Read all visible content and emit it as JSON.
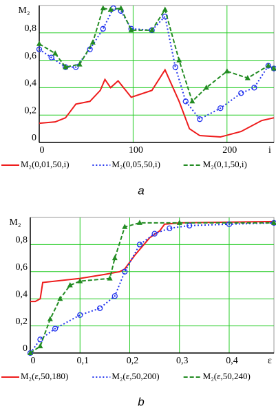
{
  "chart_data": [
    {
      "type": "line",
      "caption": "a",
      "xlabel": "i",
      "ylabel": "M₂",
      "xlim": [
        0,
        250
      ],
      "ylim": [
        0,
        1
      ],
      "xticks": [
        0,
        100,
        200
      ],
      "yticks": [
        0,
        {
          "value": 0.2,
          "label": "0,2"
        },
        {
          "value": 0.4,
          "label": "0,4"
        },
        {
          "value": 0.6,
          "label": "0,6"
        },
        {
          "value": 0.8,
          "label": "0,8"
        }
      ],
      "grid": true,
      "grid_color": "#22cc22",
      "series": [
        {
          "name": "M₂(0,01,50,i)",
          "color": "#ee1c1c",
          "style": "solid",
          "marker": "none",
          "x": [
            0,
            17,
            28,
            39,
            54,
            65,
            70,
            76,
            84,
            98,
            120,
            134,
            149,
            160,
            171,
            193,
            215,
            237,
            250
          ],
          "values": [
            0.14,
            0.15,
            0.18,
            0.28,
            0.3,
            0.38,
            0.46,
            0.4,
            0.45,
            0.33,
            0.38,
            0.53,
            0.3,
            0.1,
            0.05,
            0.04,
            0.08,
            0.16,
            0.18
          ]
        },
        {
          "name": "M₂(0,05,50,i)",
          "color": "#2233ee",
          "style": "dotted",
          "marker": "circle",
          "x": [
            0,
            13,
            28,
            39,
            54,
            68,
            79,
            87,
            98,
            120,
            134,
            145,
            156,
            171,
            193,
            215,
            229,
            244,
            250
          ],
          "values": [
            0.68,
            0.62,
            0.55,
            0.55,
            0.68,
            0.83,
            0.98,
            0.96,
            0.83,
            0.82,
            0.92,
            0.55,
            0.3,
            0.17,
            0.25,
            0.36,
            0.4,
            0.56,
            0.54
          ]
        },
        {
          "name": "M₂(0,1,50,i)",
          "color": "#228b22",
          "style": "dashed",
          "marker": "triangle",
          "x": [
            0,
            17,
            28,
            43,
            57,
            68,
            76,
            87,
            98,
            120,
            134,
            149,
            163,
            178,
            200,
            222,
            244,
            250
          ],
          "values": [
            0.72,
            0.65,
            0.55,
            0.57,
            0.73,
            0.98,
            0.97,
            0.98,
            0.82,
            0.82,
            0.97,
            0.6,
            0.3,
            0.4,
            0.52,
            0.47,
            0.56,
            0.54
          ]
        }
      ]
    },
    {
      "type": "line",
      "caption": "b",
      "xlabel": "ε",
      "ylabel": "M₂",
      "xlim": [
        0,
        0.49
      ],
      "ylim": [
        0,
        1
      ],
      "xticks": [
        0,
        {
          "value": 0.1,
          "label": "0,1"
        },
        {
          "value": 0.2,
          "label": "0,2"
        },
        {
          "value": 0.3,
          "label": "0,3"
        },
        {
          "value": 0.4,
          "label": "0,4"
        }
      ],
      "yticks": [
        0,
        {
          "value": 0.2,
          "label": "0,2"
        },
        {
          "value": 0.4,
          "label": "0,4"
        },
        {
          "value": 0.6,
          "label": "0,6"
        },
        {
          "value": 0.8,
          "label": "0,8"
        }
      ],
      "grid": true,
      "grid_color": "#22cc22",
      "series": [
        {
          "name": "M₂(ε,50,180)",
          "color": "#ee1c1c",
          "style": "solid",
          "marker": "none",
          "x": [
            0,
            0.01,
            0.02,
            0.025,
            0.1,
            0.15,
            0.18,
            0.19,
            0.21,
            0.24,
            0.26,
            0.27,
            0.3,
            0.49
          ],
          "values": [
            0.38,
            0.38,
            0.4,
            0.52,
            0.55,
            0.58,
            0.6,
            0.62,
            0.72,
            0.85,
            0.9,
            0.95,
            0.96,
            0.97
          ]
        },
        {
          "name": "M₂(ε,50,200)",
          "color": "#2233ee",
          "style": "dotted",
          "marker": "circle",
          "x": [
            0,
            0.02,
            0.05,
            0.1,
            0.14,
            0.17,
            0.19,
            0.22,
            0.25,
            0.28,
            0.32,
            0.4,
            0.49
          ],
          "values": [
            0,
            0.1,
            0.18,
            0.28,
            0.33,
            0.42,
            0.6,
            0.8,
            0.88,
            0.92,
            0.94,
            0.95,
            0.96
          ]
        },
        {
          "name": "M₂(ε,50,240)",
          "color": "#228b22",
          "style": "dashed",
          "marker": "triangle",
          "x": [
            0,
            0.02,
            0.04,
            0.06,
            0.08,
            0.1,
            0.16,
            0.17,
            0.19,
            0.22,
            0.3,
            0.49
          ],
          "values": [
            0,
            0.05,
            0.25,
            0.4,
            0.5,
            0.53,
            0.55,
            0.7,
            0.93,
            0.96,
            0.96,
            0.96
          ]
        }
      ]
    }
  ]
}
